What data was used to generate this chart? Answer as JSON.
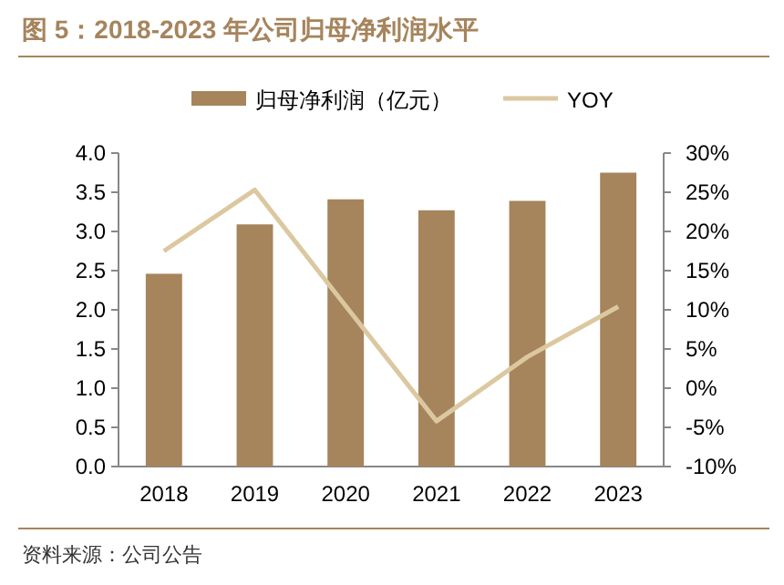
{
  "chart_data": {
    "type": "bar",
    "title": "图 5：2018-2023 年公司归母净利润水平",
    "categories": [
      "2018",
      "2019",
      "2020",
      "2021",
      "2022",
      "2023"
    ],
    "series": [
      {
        "name": "归母净利润（亿元）",
        "color": "#a6845c",
        "values": [
          2.46,
          3.09,
          3.41,
          3.27,
          3.39,
          3.75
        ]
      },
      {
        "name": "YOY",
        "type": "line",
        "axis": "y2",
        "color": "#dcc8a0",
        "values": [
          17.5,
          25.3,
          10.5,
          -4.2,
          4,
          10.4
        ]
      }
    ],
    "ylim": [
      0,
      4
    ],
    "yticks": [
      {
        "value": 0,
        "label": "0.0"
      },
      {
        "value": 0.5,
        "label": "0.5"
      },
      {
        "value": 1,
        "label": "1.0"
      },
      {
        "value": 1.5,
        "label": "1.5"
      },
      {
        "value": 2,
        "label": "2.0"
      },
      {
        "value": 2.5,
        "label": "2.5"
      },
      {
        "value": 3,
        "label": "3.0"
      },
      {
        "value": 3.5,
        "label": "3.5"
      },
      {
        "value": 4,
        "label": "4.0"
      }
    ],
    "y2lim": [
      -10,
      30
    ],
    "y2ticks": [
      {
        "value": -10,
        "label": "-10%"
      },
      {
        "value": -5,
        "label": "-5%"
      },
      {
        "value": 0,
        "label": "0%"
      },
      {
        "value": 5,
        "label": "5%"
      },
      {
        "value": 10,
        "label": "10%"
      },
      {
        "value": 15,
        "label": "15%"
      },
      {
        "value": 20,
        "label": "20%"
      },
      {
        "value": 25,
        "label": "25%"
      },
      {
        "value": 30,
        "label": "30%"
      }
    ],
    "legend": "top",
    "annotations": [
      "资料来源：公司公告"
    ]
  }
}
